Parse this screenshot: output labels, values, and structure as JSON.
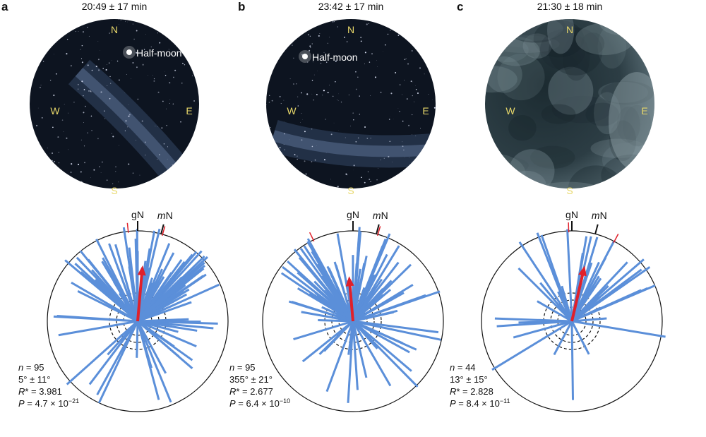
{
  "panels": [
    {
      "letter": "a",
      "time": "20:49 ± 17 min",
      "sky": "night-stars-moon",
      "moon_label": "Half-moon",
      "compass": {
        "n": "N",
        "s": "S",
        "e": "E",
        "w": "W"
      },
      "markers": {
        "gN": "gN",
        "mN": "mN"
      },
      "stats": {
        "n": "95",
        "mean": "5° ± 11°",
        "r": "3.981",
        "p_base": "4.7 × 10",
        "p_exp": "−21"
      },
      "mean_direction_deg": 5,
      "mean_vector_length": 0.62,
      "ci_deg": [
        -6,
        16
      ]
    },
    {
      "letter": "b",
      "time": "23:42 ± 17 min",
      "sky": "night-stars-moon",
      "moon_label": "Half-moon",
      "compass": {
        "n": "N",
        "s": "S",
        "e": "E",
        "w": "W"
      },
      "markers": {
        "gN": "gN",
        "mN": "mN"
      },
      "stats": {
        "n": "95",
        "mean": "355° ± 21°",
        "r": "2.677",
        "p_base": "6.4 × 10",
        "p_exp": "−10"
      },
      "mean_direction_deg": 355,
      "mean_vector_length": 0.5,
      "ci_deg": [
        -26,
        16
      ]
    },
    {
      "letter": "c",
      "time": "21:30 ± 18 min",
      "sky": "overcast",
      "moon_label": "",
      "compass": {
        "n": "N",
        "s": "S",
        "e": "E",
        "w": "W"
      },
      "markers": {
        "gN": "gN",
        "mN": "mN"
      },
      "stats": {
        "n": "44",
        "mean": "13° ± 15°",
        "r": "2.828",
        "p_base": "8.4 × 10",
        "p_exp": "−11"
      },
      "mean_direction_deg": 13,
      "mean_vector_length": 0.63,
      "ci_deg": [
        -2,
        28
      ]
    }
  ],
  "colors": {
    "lines": "#5b8fd9",
    "mean_arrow": "#e0202a",
    "ci_tick": "#e0202a",
    "compass_label": "#e8d86a",
    "sky_night": "#0d1420",
    "sky_cloud": "#2c3d44"
  }
}
